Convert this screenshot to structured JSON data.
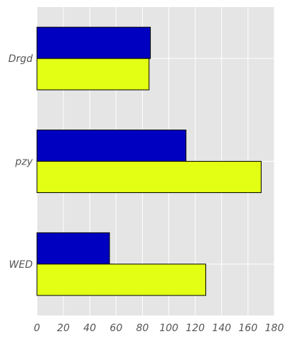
{
  "chart_data": {
    "type": "bar",
    "orientation": "horizontal",
    "title": "",
    "xlabel": "",
    "ylabel": "",
    "categories": [
      "Drgd",
      "pzy",
      "WED"
    ],
    "series": [
      {
        "color": "#0000c0",
        "values": [
          86,
          113,
          55
        ]
      },
      {
        "color": "#e3ff14",
        "values": [
          85,
          170,
          128
        ]
      }
    ],
    "xlim": [
      0,
      180
    ],
    "xticks": [
      0,
      20,
      40,
      60,
      80,
      100,
      120,
      140,
      160,
      180
    ],
    "xtick_labels": [
      "0",
      "20",
      "40",
      "60",
      "80",
      "100",
      "120",
      "140",
      "160",
      "180"
    ],
    "grid": true,
    "legend": "none",
    "plot_background": "#e5e5e5",
    "grid_color": "#ffffff"
  }
}
